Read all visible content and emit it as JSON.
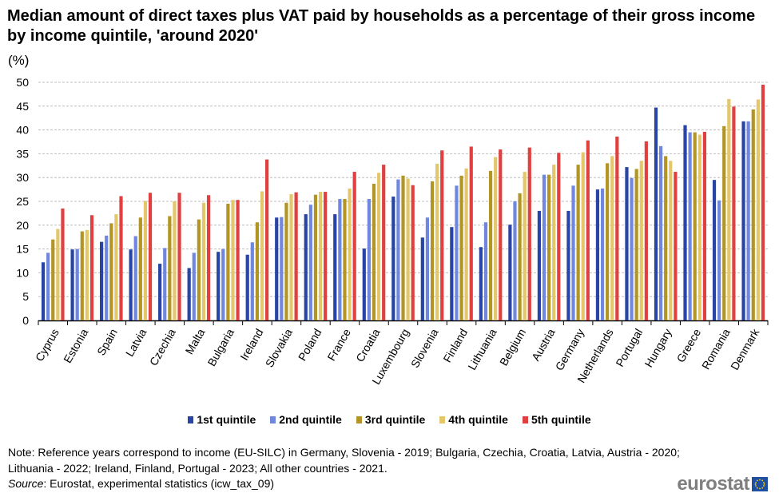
{
  "title": "Median amount of direct taxes plus VAT paid by households as a percentage of their gross income by income quintile, 'around 2020'",
  "unit_label": "(%)",
  "colors": {
    "q1": "#2844a5",
    "q2": "#6f87de",
    "q3": "#b29524",
    "q4": "#e3c76a",
    "q5": "#e04040"
  },
  "note": "Note: Reference years correspond to income (EU-SILC) in Germany,  Slovenia - 2019; Bulgaria, Czechia, Croatia, Latvia, Austria - 2020; Lithuania  - 2022; Ireland,  Finland, Portugal - 2023; All other countries - 2021.",
  "source_label": "Source",
  "source_text": ": Eurostat, experimental statistics (icw_tax_09)",
  "logo_text": "eurostat",
  "chart_data": {
    "type": "bar",
    "title": "Median amount of direct taxes plus VAT paid by households as a percentage of their gross income by income quintile, 'around 2020'",
    "ylabel": "(%)",
    "ylim": [
      0,
      50
    ],
    "yticks": [
      "0",
      "5",
      "10",
      "15",
      "20",
      "25",
      "30",
      "35",
      "40",
      "45",
      "50"
    ],
    "grid": true,
    "legend_position": "bottom",
    "categories": [
      "Cyprus",
      "Estonia",
      "Spain",
      "Latvia",
      "Czechia",
      "Malta",
      "Bulgaria",
      "Ireland",
      "Slovakia",
      "Poland",
      "France",
      "Croatia",
      "Luxembourg",
      "Slovenia",
      "Finland",
      "Lithuania",
      "Belgium",
      "Austria",
      "Germany",
      "Netherlands",
      "Portugal",
      "Hungary",
      "Greece",
      "Romania",
      "Denmark"
    ],
    "series": [
      {
        "name": "1st quintile",
        "values": [
          12.2,
          14.9,
          16.5,
          14.9,
          11.9,
          11.0,
          14.4,
          13.8,
          21.6,
          22.3,
          22.3,
          15.1,
          26.0,
          17.4,
          19.6,
          15.4,
          20.1,
          23.0,
          23.0,
          27.5,
          32.2,
          44.7,
          41.0,
          29.5,
          41.8
        ]
      },
      {
        "name": "2nd quintile",
        "values": [
          14.2,
          15.0,
          17.8,
          17.7,
          15.2,
          14.2,
          15.0,
          16.4,
          21.7,
          24.3,
          25.5,
          25.5,
          29.6,
          21.6,
          28.3,
          20.6,
          25.0,
          30.6,
          28.3,
          27.7,
          29.9,
          36.6,
          39.5,
          25.2,
          41.8
        ]
      },
      {
        "name": "3rd quintile",
        "values": [
          17.0,
          18.7,
          20.4,
          21.6,
          21.9,
          21.2,
          24.5,
          20.6,
          24.7,
          26.4,
          25.5,
          28.7,
          30.4,
          29.2,
          30.4,
          31.4,
          26.7,
          30.6,
          32.7,
          33.0,
          31.8,
          34.5,
          39.5,
          40.8,
          44.3
        ]
      },
      {
        "name": "4th quintile",
        "values": [
          19.2,
          19.0,
          22.3,
          25.1,
          25.0,
          24.7,
          25.3,
          27.1,
          26.5,
          27.0,
          27.7,
          31.0,
          29.8,
          32.9,
          31.9,
          34.3,
          31.2,
          32.7,
          35.3,
          34.5,
          33.5,
          33.5,
          39.0,
          46.5,
          46.4
        ]
      },
      {
        "name": "5th quintile",
        "values": [
          23.5,
          22.1,
          26.1,
          26.8,
          26.8,
          26.3,
          25.3,
          33.8,
          26.9,
          27.0,
          31.2,
          32.7,
          28.4,
          35.7,
          36.5,
          35.9,
          36.3,
          35.2,
          37.8,
          38.6,
          37.6,
          31.2,
          39.6,
          44.9,
          49.5
        ]
      }
    ]
  }
}
